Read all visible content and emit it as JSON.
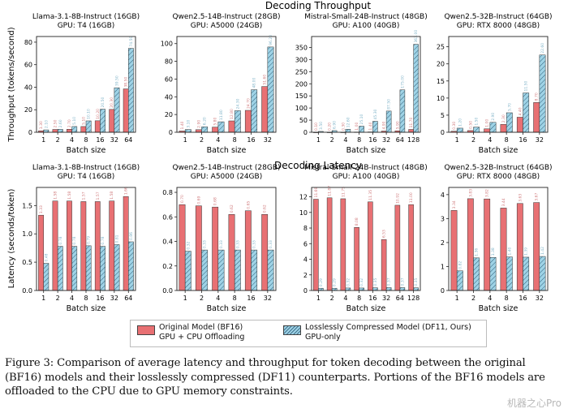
{
  "figure": {
    "row_titles": [
      "Decoding Throughput",
      "Decoding Latency"
    ],
    "row_ylabels": [
      "Throughput (tokens/second)",
      "Latency (seconds/token)"
    ],
    "xlabel": "Batch size",
    "colors": {
      "original": "#e87073",
      "compressed": "#9fd3e6",
      "hatch": "#2f5f7a"
    },
    "legend": {
      "original": "Original Model (BF16)\nGPU + CPU Offloading",
      "compressed": "Losslessly Compressed Model (DF11, Ours)\nGPU-only"
    },
    "caption": "Figure 3: Comparison of average latency and throughput for token decoding between the original (BF16) models and their losslessly compressed (DF11) counterparts. Portions of the BF16 models are offloaded to the CPU due to GPU memory constraints.",
    "watermark": "机器之心Pro"
  },
  "chart_data": [
    {
      "type": "bar",
      "row": "throughput",
      "title": "Llama-3.1-8B-Instruct (16GB)\nGPU: T4 (16GB)",
      "categories": [
        "1",
        "2",
        "4",
        "8",
        "16",
        "32",
        "64"
      ],
      "series": [
        {
          "name": "Original Model (BF16)",
          "values": [
            1.3,
            2.5,
            2.7,
            5.1,
            10.2,
            20.3,
            38.5
          ]
        },
        {
          "name": "Losslessly Compressed Model (DF11, Ours)",
          "values": [
            2.1,
            2.6,
            5.1,
            10.1,
            20.5,
            39.5,
            74.5
          ]
        }
      ],
      "yticks": [
        0,
        20,
        40,
        60,
        80
      ],
      "ylim": [
        0,
        85
      ]
    },
    {
      "type": "bar",
      "row": "throughput",
      "title": "Qwen2.5-14B-Instruct (28GB)\nGPU: A5000 (24GB)",
      "categories": [
        "1",
        "2",
        "4",
        "8",
        "16",
        "32"
      ],
      "series": [
        {
          "name": "Original Model (BF16)",
          "values": [
            1.4,
            2.9,
            5.8,
            12.8,
            24.7,
            51.6
          ]
        },
        {
          "name": "Losslessly Compressed Model (DF11, Ours)",
          "values": [
            3.1,
            6.2,
            11.8,
            24.3,
            48.0,
            96.2
          ]
        }
      ],
      "yticks": [
        0,
        20,
        40,
        60,
        80,
        100
      ],
      "ylim": [
        0,
        108
      ]
    },
    {
      "type": "bar",
      "row": "throughput",
      "title": "Mistral-Small-24B-Instruct (48GB)\nGPU: A100 (40GB)",
      "categories": [
        "1",
        "2",
        "4",
        "8",
        "16",
        "32",
        "64",
        "128"
      ],
      "series": [
        {
          "name": "Original Model (BF16)",
          "values": [
            0.1,
            0.2,
            0.3,
            1.0,
            1.4,
            4.9,
            5.9,
            11.7
          ]
        },
        {
          "name": "Losslessly Compressed Model (DF11, Ours)",
          "values": [
            3.5,
            6.9,
            12.6,
            25.1,
            45.3,
            87.5,
            175.0,
            363.0
          ]
        }
      ],
      "yticks": [
        0,
        50,
        100,
        150,
        200,
        250,
        300,
        350
      ],
      "ylim": [
        0,
        395
      ]
    },
    {
      "type": "bar",
      "row": "throughput",
      "title": "Qwen2.5-32B-Instruct (64GB)\nGPU: RTX 8000 (48GB)",
      "categories": [
        "1",
        "2",
        "4",
        "8",
        "16",
        "32"
      ],
      "series": [
        {
          "name": "Original Model (BF16)",
          "values": [
            0.3,
            0.5,
            1.0,
            2.3,
            4.4,
            8.7
          ]
        },
        {
          "name": "Losslessly Compressed Model (DF11, Ours)",
          "values": [
            1.2,
            1.5,
            2.9,
            5.7,
            11.5,
            22.6
          ]
        }
      ],
      "yticks": [
        0,
        5,
        10,
        15,
        20,
        25
      ],
      "ylim": [
        0,
        28
      ]
    },
    {
      "type": "bar",
      "row": "latency",
      "title": "Llama-3.1-8B-Instruct (16GB)\nGPU: T4 (16GB)",
      "categories": [
        "1",
        "2",
        "4",
        "8",
        "16",
        "32",
        "64"
      ],
      "series": [
        {
          "name": "Original Model (BF16)",
          "values": [
            1.33,
            1.58,
            1.58,
            1.57,
            1.57,
            1.58,
            1.66
          ]
        },
        {
          "name": "Losslessly Compressed Model (DF11, Ours)",
          "values": [
            0.48,
            0.78,
            0.78,
            0.79,
            0.78,
            0.81,
            0.86
          ]
        }
      ],
      "yticks": [
        0.0,
        0.5,
        1.0,
        1.5
      ],
      "ylim": [
        0,
        1.82
      ]
    },
    {
      "type": "bar",
      "row": "latency",
      "title": "Qwen2.5-14B-Instruct (28GB)\nGPU: A5000 (24GB)",
      "categories": [
        "1",
        "2",
        "4",
        "8",
        "16",
        "32"
      ],
      "series": [
        {
          "name": "Original Model (BF16)",
          "values": [
            0.7,
            0.69,
            0.68,
            0.62,
            0.65,
            0.62
          ]
        },
        {
          "name": "Losslessly Compressed Model (DF11, Ours)",
          "values": [
            0.32,
            0.33,
            0.33,
            0.33,
            0.33,
            0.33
          ]
        }
      ],
      "yticks": [
        0.0,
        0.2,
        0.4,
        0.6,
        0.8
      ],
      "ylim": [
        0,
        0.84
      ]
    },
    {
      "type": "bar",
      "row": "latency",
      "title": "Mistral-Small-24B-Instruct (48GB)\nGPU: A100 (40GB)",
      "categories": [
        "1",
        "2",
        "4",
        "8",
        "16",
        "32",
        "64",
        "128"
      ],
      "series": [
        {
          "name": "Original Model (BF16)",
          "values": [
            11.69,
            11.87,
            11.75,
            8.08,
            11.35,
            6.53,
            10.92,
            11.0
          ]
        },
        {
          "name": "Losslessly Compressed Model (DF11, Ours)",
          "values": [
            0.29,
            0.29,
            0.32,
            0.32,
            0.35,
            0.37,
            0.37,
            0.35
          ]
        }
      ],
      "yticks": [
        0,
        2,
        4,
        6,
        8,
        10,
        12
      ],
      "ylim": [
        0,
        13.2
      ]
    },
    {
      "type": "bar",
      "row": "latency",
      "title": "Qwen2.5-32B-Instruct (64GB)\nGPU: RTX 8000 (48GB)",
      "categories": [
        "1",
        "2",
        "4",
        "8",
        "16",
        "32"
      ],
      "series": [
        {
          "name": "Original Model (BF16)",
          "values": [
            3.34,
            3.83,
            3.82,
            3.44,
            3.63,
            3.67
          ]
        },
        {
          "name": "Losslessly Compressed Model (DF11, Ours)",
          "values": [
            0.82,
            1.36,
            1.38,
            1.4,
            1.39,
            1.42
          ]
        }
      ],
      "yticks": [
        0,
        1,
        2,
        3,
        4
      ],
      "ylim": [
        0,
        4.3
      ]
    }
  ]
}
